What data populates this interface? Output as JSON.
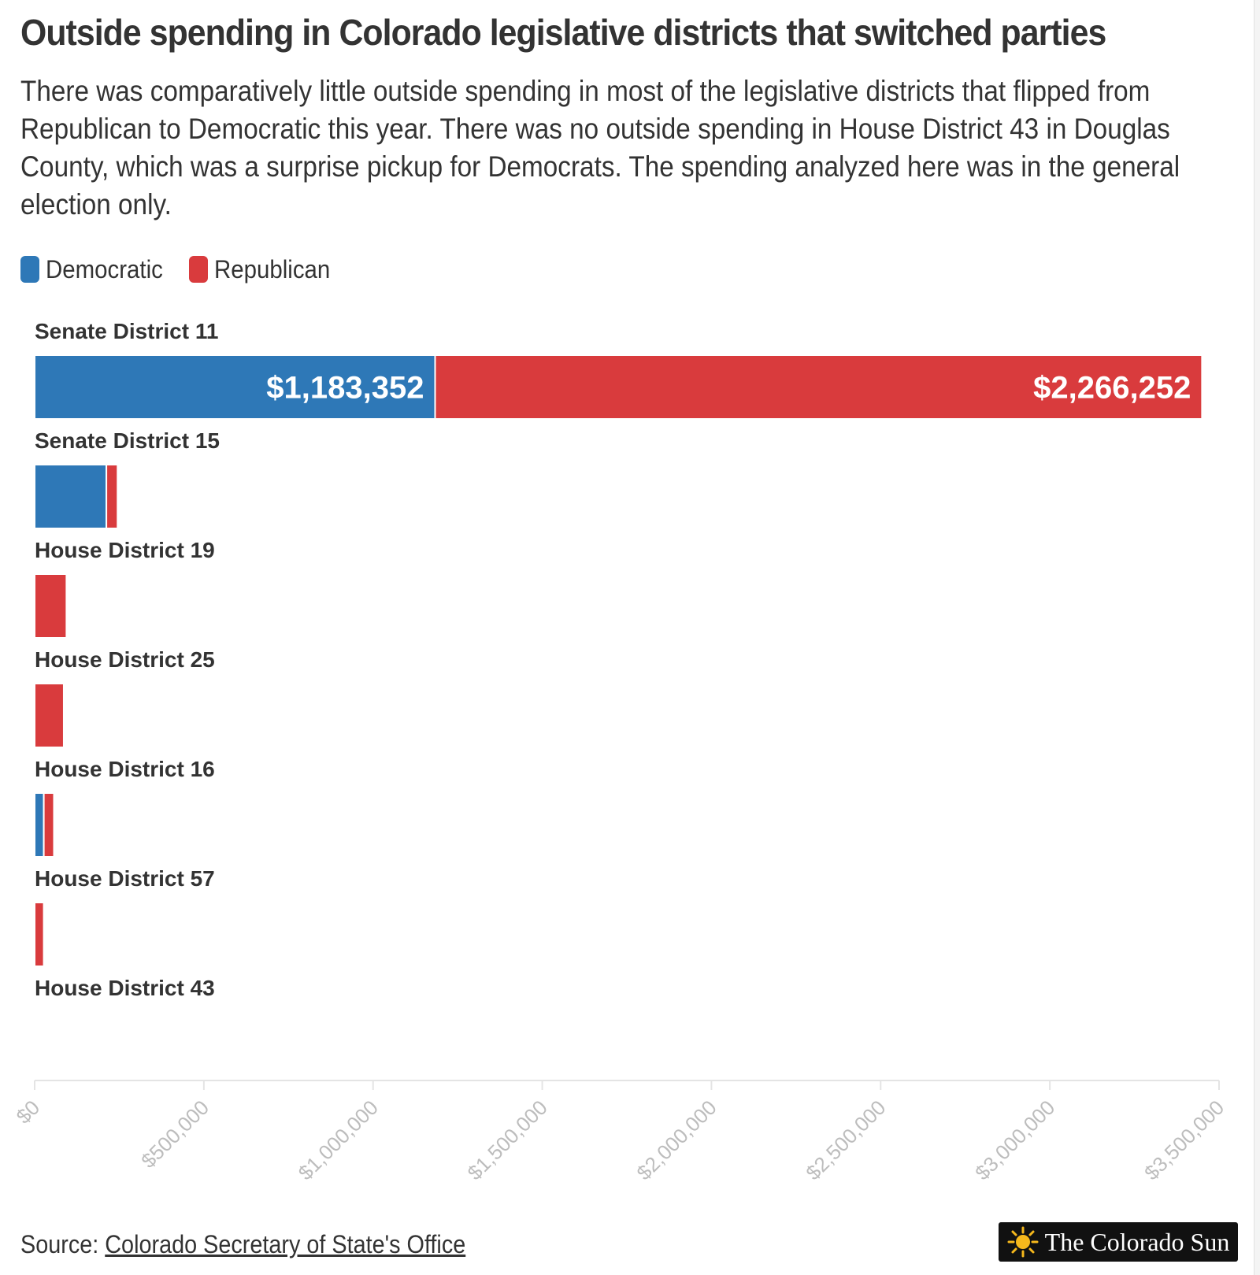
{
  "chart_data": {
    "type": "bar",
    "orientation": "horizontal",
    "stacked": true,
    "title": "Outside spending in Colorado legislative districts that switched parties",
    "subtitle": "There was comparatively little outside spending in most of the legislative districts that flipped from Republican to Democratic this year. There was no outside spending in House District 43 in Douglas County, which was a surprise pickup for Democrats. The spending analyzed here was in the general election only.",
    "categories": [
      "Senate District 11",
      "Senate District 15",
      "House District 19",
      "House District 25",
      "House District 16",
      "House District 57",
      "House District 43"
    ],
    "series": [
      {
        "name": "Democratic",
        "color": "#2e78b7",
        "values": [
          1183352,
          212000,
          0,
          0,
          27000,
          0,
          0
        ]
      },
      {
        "name": "Republican",
        "color": "#d93b3d",
        "values": [
          2266252,
          33000,
          94000,
          86000,
          30000,
          27000,
          0
        ]
      }
    ],
    "data_labels": [
      [
        "$1,183,352",
        "$2,266,252"
      ]
    ],
    "xlim": [
      0,
      3500000
    ],
    "xticks": [
      0,
      500000,
      1000000,
      1500000,
      2000000,
      2500000,
      3000000,
      3500000
    ],
    "xtick_labels": [
      "$0",
      "$500,000",
      "$1,000,000",
      "$1,500,000",
      "$2,000,000",
      "$2,500,000",
      "$3,000,000",
      "$3,500,000"
    ],
    "xlabel": "",
    "ylabel": "",
    "legend_position": "top-left",
    "grid": false
  },
  "source": {
    "prefix": "Source: ",
    "link_text": "Colorado Secretary of State's Office"
  },
  "logo": {
    "icon": "sun-icon",
    "text": "The Colorado Sun"
  }
}
